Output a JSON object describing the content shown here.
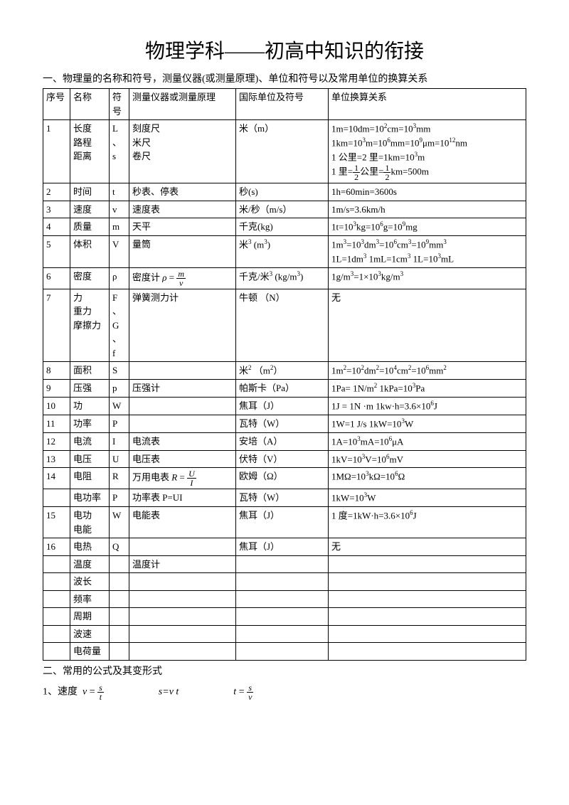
{
  "title": "物理学科——初高中知识的衔接",
  "section1": "一、物理量的名称和符号，测量仪器(或测量原理)、单位和符号以及常用单位的换算关系",
  "headers": {
    "idx": "序号",
    "name": "名称",
    "sym": "符号",
    "instr": "测量仪器或测量原理",
    "unit": "国际单位及符号",
    "conv": "单位换算关系"
  },
  "rows": [
    {
      "idx": "1",
      "name": "长度\n路程\n距离",
      "sym": "L、s",
      "instr": "刻度尺\n米尺\n卷尺",
      "unit": "米（m）",
      "conv": "1m=10dm=10²cm=10³mm\n1km=10³m=10⁶mm=10⁹μm=10¹²nm\n1 公里=2 里=1km=10³m\n1 里=½公里=½km=500m"
    },
    {
      "idx": "2",
      "name": "时间",
      "sym": "t",
      "instr": "秒表、停表",
      "unit": "秒(s)",
      "conv": "1h=60min=3600s"
    },
    {
      "idx": "3",
      "name": "速度",
      "sym": "v",
      "instr": "速度表",
      "unit": "米/秒（m/s）",
      "conv": "1m/s=3.6km/h"
    },
    {
      "idx": "4",
      "name": "质量",
      "sym": "m",
      "instr": "天平",
      "unit": "千克(kg)",
      "conv": "1t=10³kg=10⁶g=10⁹mg"
    },
    {
      "idx": "5",
      "name": "体积",
      "sym": "V",
      "instr": "量筒",
      "unit": "米³ (m³)",
      "conv": "1m³=10³dm³=10⁶cm³=10⁹mm³\n1L=1dm³   1mL=1cm³    1L=10³mL"
    },
    {
      "idx": "6",
      "name": "密度",
      "sym": "ρ",
      "instr": "密度计 ρ = m/v",
      "unit": "千克/米³ (kg/m³)",
      "conv": "1g/m³=1×10³kg/m³"
    },
    {
      "idx": "7",
      "name": "力\n重力\n摩擦力",
      "sym": "F、G、f",
      "instr": "弹簧测力计",
      "unit": "牛顿 （N）",
      "conv": "无"
    },
    {
      "idx": "8",
      "name": "面积",
      "sym": "S",
      "instr": "",
      "unit": "米²   （m²）",
      "conv": "1m²=10²dm²=10⁴cm²=10⁶mm²"
    },
    {
      "idx": "9",
      "name": "压强",
      "sym": "p",
      "instr": "压强计",
      "unit": "帕斯卡（Pa）",
      "conv": "1Pa= 1N/m²          1kPa=10³Pa"
    },
    {
      "idx": "10",
      "name": "功",
      "sym": "W",
      "instr": "",
      "unit": "焦耳（J）",
      "conv": "1J = 1N ·m       1kw·h=3.6×10⁶J"
    },
    {
      "idx": "11",
      "name": "功率",
      "sym": "P",
      "instr": "",
      "unit": "瓦特（W）",
      "conv": "1W=1 J/s           1kW=10³W"
    },
    {
      "idx": "12",
      "name": "电流",
      "sym": "I",
      "instr": "电流表",
      "unit": "安培（A）",
      "conv": "1A=10³mA=10⁶μA"
    },
    {
      "idx": "13",
      "name": "电压",
      "sym": "U",
      "instr": "电压表",
      "unit": "伏特（V）",
      "conv": "1kV=10³V=10⁶mV"
    },
    {
      "idx": "14",
      "name": "电阻",
      "sym": "R",
      "instr": "万用电表 R = U/I",
      "unit": "欧姆（Ω）",
      "conv": "1MΩ=10³kΩ=10⁶Ω"
    },
    {
      "idx": "",
      "name": "电功率",
      "sym": "P",
      "instr": "功率表 P=UI",
      "unit": "瓦特（W）",
      "conv": "1kW=10³W"
    },
    {
      "idx": "15",
      "name": "电功\n电能",
      "sym": "W",
      "instr": "电能表",
      "unit": "焦耳（J）",
      "conv": "1 度=1kW·h=3.6×10⁶J"
    },
    {
      "idx": "16",
      "name": "电热",
      "sym": "Q",
      "instr": "",
      "unit": "焦耳（J）",
      "conv": "无"
    },
    {
      "idx": "",
      "name": "温度",
      "sym": "",
      "instr": "温度计",
      "unit": "",
      "conv": ""
    },
    {
      "idx": "",
      "name": "波长",
      "sym": "",
      "instr": "",
      "unit": "",
      "conv": ""
    },
    {
      "idx": "",
      "name": "频率",
      "sym": "",
      "instr": "",
      "unit": "",
      "conv": ""
    },
    {
      "idx": "",
      "name": "周期",
      "sym": "",
      "instr": "",
      "unit": "",
      "conv": ""
    },
    {
      "idx": "",
      "name": "波速",
      "sym": "",
      "instr": "",
      "unit": "",
      "conv": ""
    },
    {
      "idx": "",
      "name": "电荷量",
      "sym": "",
      "instr": "",
      "unit": "",
      "conv": ""
    }
  ],
  "section2": "二、常用的公式及其变形式",
  "formula1": {
    "label": "1、速度",
    "a_lhs": "v",
    "a_num": "s",
    "a_den": "t",
    "b": "s=v t",
    "c_lhs": "t",
    "c_num": "s",
    "c_den": "v"
  }
}
